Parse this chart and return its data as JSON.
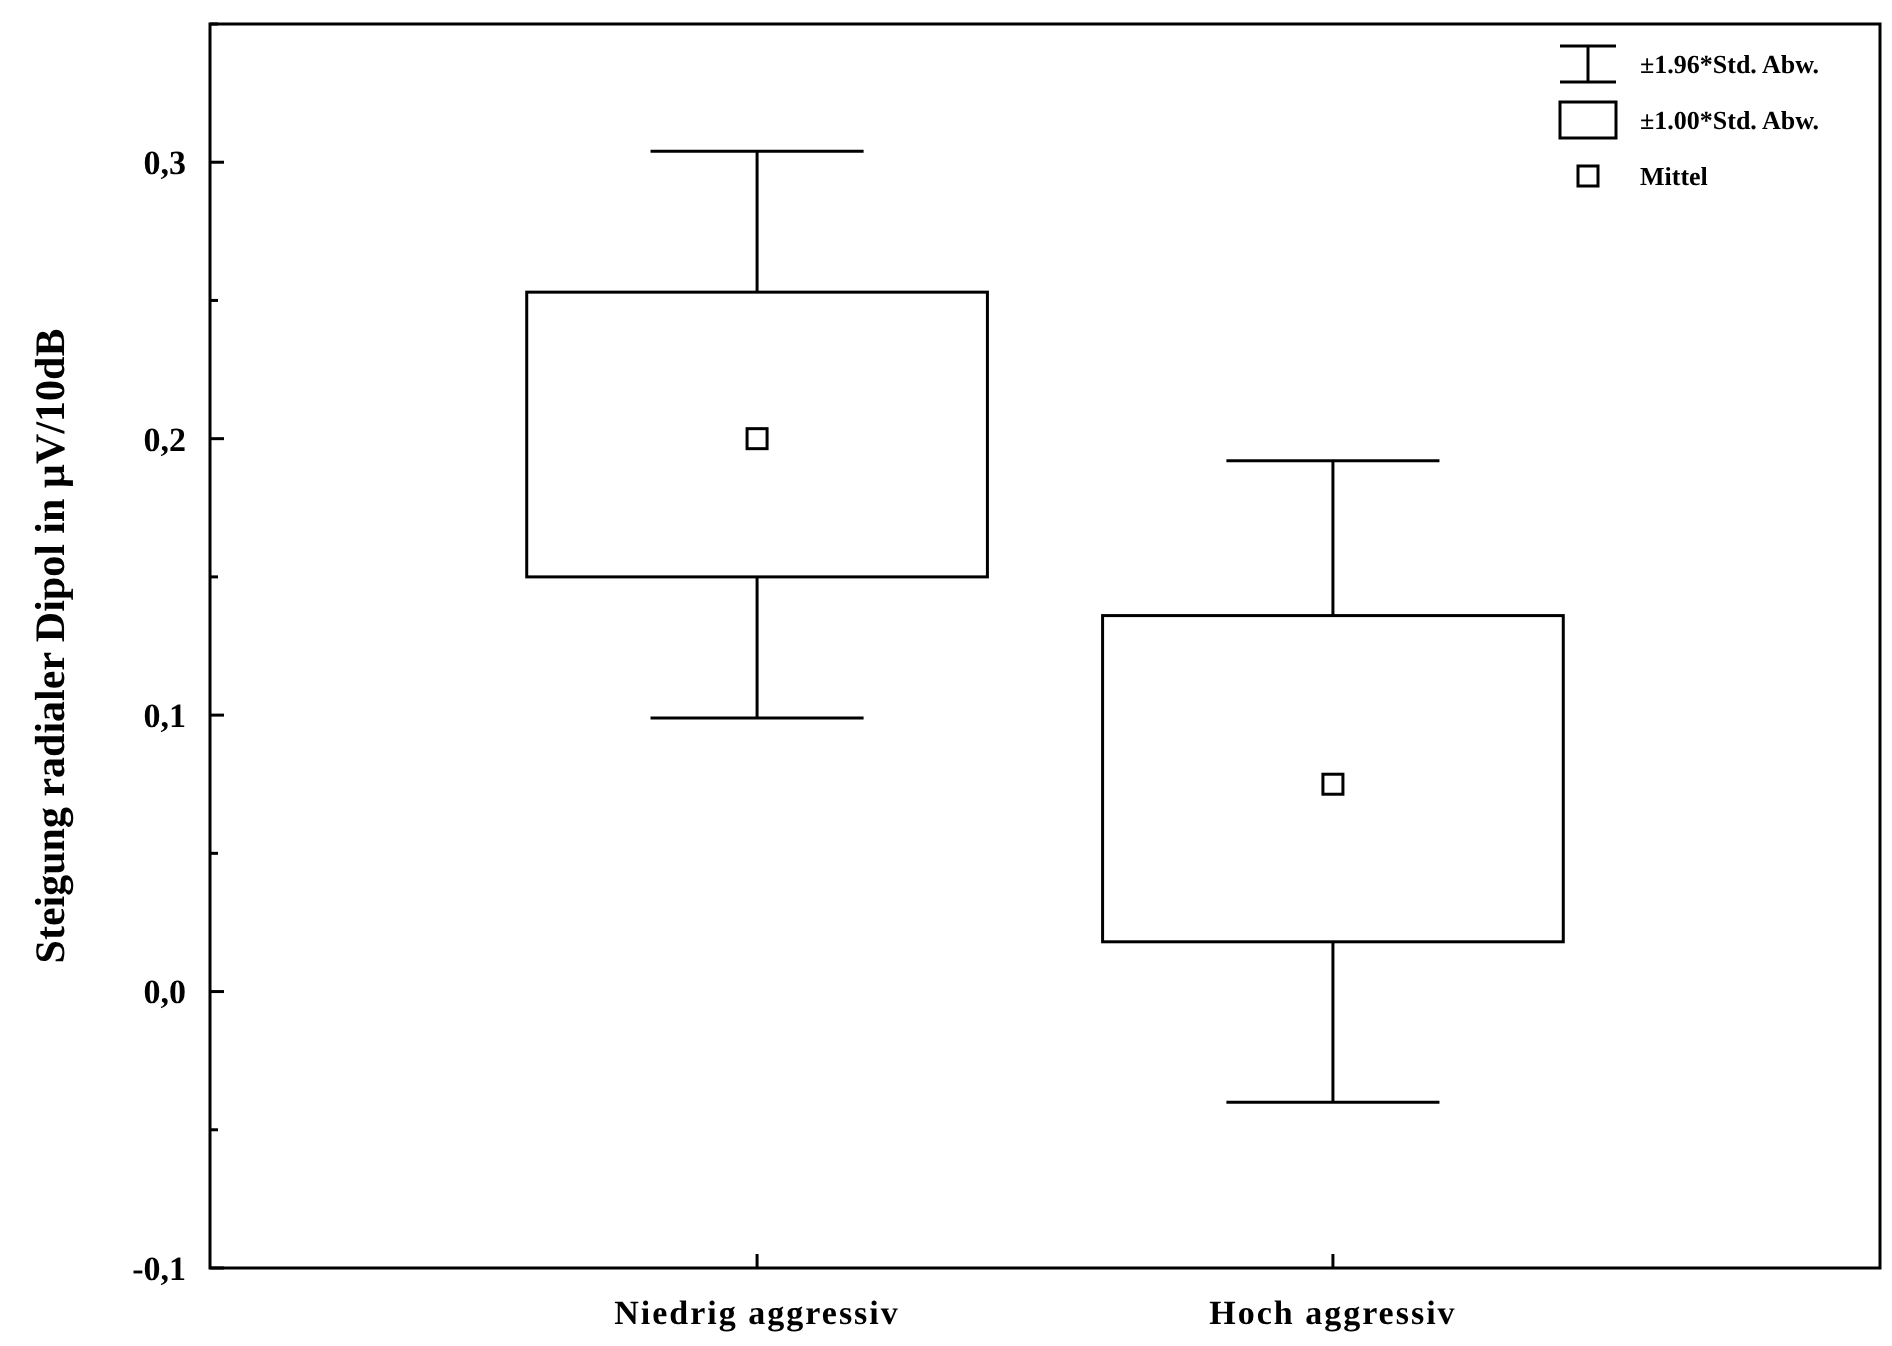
{
  "chart_data": {
    "type": "box",
    "ylabel": "Steigung radialer Dipol in µV/10dB",
    "categories": [
      "Niedrig aggressiv",
      "Hoch aggressiv"
    ],
    "boxes": [
      {
        "low": 0.099,
        "q1": 0.15,
        "median": 0.2,
        "q3": 0.253,
        "high": 0.304
      },
      {
        "low": -0.04,
        "q1": 0.018,
        "median": 0.075,
        "q3": 0.136,
        "high": 0.192
      }
    ],
    "ylim": [
      -0.1,
      0.35
    ],
    "yticks": [
      {
        "value": -0.1,
        "label": "-0,1"
      },
      {
        "value": -0.05,
        "label": null
      },
      {
        "value": 0,
        "label": "0,0"
      },
      {
        "value": 0.05,
        "label": null
      },
      {
        "value": 0.1,
        "label": "0,1"
      },
      {
        "value": 0.15,
        "label": null
      },
      {
        "value": 0.2,
        "label": "0,2"
      },
      {
        "value": 0.25,
        "label": null
      },
      {
        "value": 0.3,
        "label": "0,3"
      },
      {
        "value": 0.35,
        "label": null
      }
    ],
    "annotations": [
      "±1.96*Std. Abw.",
      "±1.00*Std. Abw.",
      "Mittel"
    ],
    "grid": false
  }
}
